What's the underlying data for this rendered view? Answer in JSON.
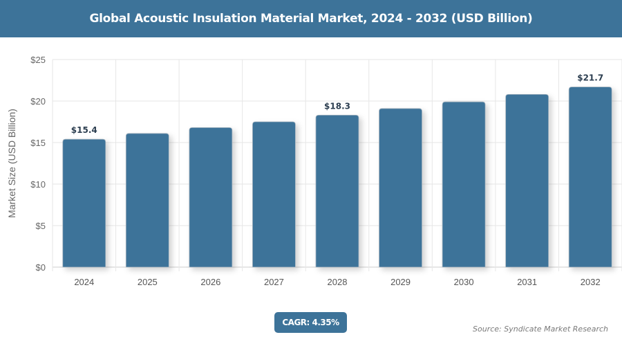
{
  "chart_data": {
    "type": "bar",
    "title": "Global Acoustic Insulation Material Market, 2024 - 2032 (USD Billion)",
    "ylabel": "Market Size (USD Billion)",
    "xlabel": "",
    "ylim": [
      0,
      25
    ],
    "yticks": [
      0,
      5,
      10,
      15,
      20,
      25
    ],
    "ytick_labels": [
      "$0",
      "$5",
      "$10",
      "$15",
      "$20",
      "$25"
    ],
    "categories": [
      "2024",
      "2025",
      "2026",
      "2027",
      "2028",
      "2029",
      "2030",
      "2031",
      "2032"
    ],
    "values": [
      15.4,
      16.1,
      16.8,
      17.5,
      18.3,
      19.1,
      19.9,
      20.8,
      21.7
    ],
    "data_labels": {
      "2024": "$15.4",
      "2028": "$18.3",
      "2032": "$21.7"
    },
    "bar_color": "#3d7399",
    "grid": true
  },
  "cagr_label": "CAGR: 4.35%",
  "source": "Source: Syndicate Market Research"
}
